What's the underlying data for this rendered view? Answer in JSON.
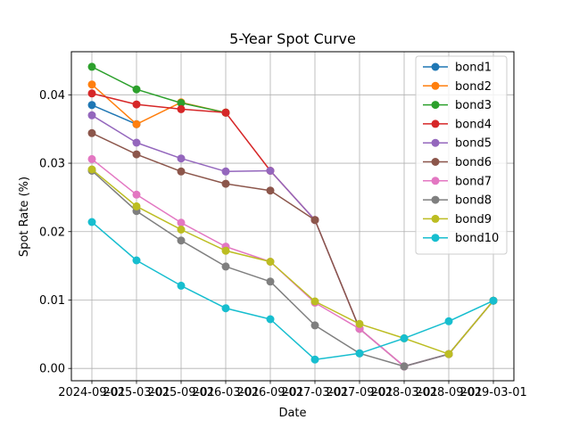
{
  "chart_data": {
    "type": "line",
    "title": "5-Year Spot Curve",
    "xlabel": "Date",
    "ylabel": "Spot Rate (%)",
    "categories": [
      "2024-09-01",
      "2025-03-01",
      "2025-09-01",
      "2026-03-01",
      "2026-09-01",
      "2027-03-01",
      "2027-09-01",
      "2028-03-01",
      "2028-09-01",
      "2029-03-01"
    ],
    "ylim": [
      -0.0018,
      0.0463
    ],
    "yticks": [
      "0.00",
      "0.01",
      "0.02",
      "0.03",
      "0.04"
    ],
    "grid": true,
    "legend_position": "top-right",
    "series": [
      {
        "name": "bond1",
        "color": "#1f77b4",
        "values": [
          0.0385,
          0.0357,
          null,
          null,
          null,
          null,
          null,
          null,
          null,
          null
        ]
      },
      {
        "name": "bond2",
        "color": "#ff7f0e",
        "values": [
          0.0415,
          0.0357,
          0.0389,
          0.0374,
          null,
          null,
          null,
          null,
          null,
          null
        ]
      },
      {
        "name": "bond3",
        "color": "#2ca02c",
        "values": [
          0.0441,
          0.0408,
          0.0388,
          0.0374,
          null,
          null,
          null,
          null,
          null,
          null
        ]
      },
      {
        "name": "bond4",
        "color": "#d62728",
        "values": [
          0.0402,
          0.0386,
          0.0379,
          0.0374,
          0.0289,
          0.0217,
          null,
          null,
          null,
          null
        ]
      },
      {
        "name": "bond5",
        "color": "#9467bd",
        "values": [
          0.037,
          0.033,
          0.0307,
          0.0288,
          0.0289,
          0.0217,
          0.0058,
          0.0003,
          0.0021,
          0.0099
        ]
      },
      {
        "name": "bond6",
        "color": "#8c564b",
        "values": [
          0.0344,
          0.0313,
          0.0288,
          0.027,
          0.026,
          0.0217,
          0.0058,
          0.0003,
          0.0021,
          0.0099
        ]
      },
      {
        "name": "bond7",
        "color": "#e377c2",
        "values": [
          0.0306,
          0.0254,
          0.0213,
          0.0178,
          0.0156,
          0.0096,
          0.0058,
          0.0003,
          0.0021,
          0.0099
        ]
      },
      {
        "name": "bond8",
        "color": "#7f7f7f",
        "values": [
          0.0289,
          0.023,
          0.0187,
          0.0149,
          0.0127,
          0.0063,
          0.0022,
          0.0003,
          0.0021,
          0.0099
        ]
      },
      {
        "name": "bond9",
        "color": "#bcbd22",
        "values": [
          0.0291,
          0.0237,
          0.0203,
          0.0172,
          0.0156,
          0.0098,
          0.0065,
          0.0044,
          0.0021,
          0.0099
        ]
      },
      {
        "name": "bond10",
        "color": "#17becf",
        "values": [
          0.0214,
          0.0158,
          0.0121,
          0.0088,
          0.0072,
          0.0013,
          0.0022,
          0.0044,
          0.0069,
          0.0099
        ]
      }
    ]
  }
}
